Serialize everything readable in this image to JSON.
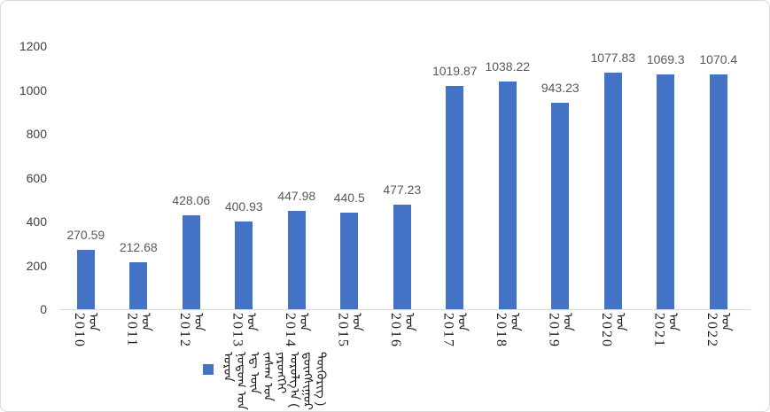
{
  "frame": {
    "background": "#ffffff",
    "border_color": "#d9d9d9"
  },
  "chart_data": {
    "type": "bar",
    "title": "",
    "categories": [
      "2010",
      "2011",
      "2012",
      "2013",
      "2014",
      "2015",
      "2016",
      "2017",
      "2018",
      "2019",
      "2020",
      "2021",
      "2022"
    ],
    "category_suffix": "ᠣᠨ",
    "category_suffix_note": "Mongolian vertical script suffix after each year (best-effort transcription)",
    "values": [
      270.59,
      212.68,
      428.06,
      400.93,
      447.98,
      440.5,
      477.23,
      1019.87,
      1038.22,
      943.23,
      1077.83,
      1069.3,
      1070.4
    ],
    "data_labels": [
      "270.59",
      "212.68",
      "428.06",
      "400.93",
      "447.98",
      "440.5",
      "477.23",
      "1019.87",
      "1038.22",
      "943.23",
      "1077.83",
      "1069.3",
      "1070.4"
    ],
    "xlabel": "",
    "ylabel": "",
    "ylim": [
      0,
      1200
    ],
    "y_ticks": [
      0,
      200,
      400,
      600,
      800,
      1000,
      1200
    ],
    "y_tick_labels": [
      "0",
      "200",
      "400",
      "600",
      "800",
      "1000",
      "1200"
    ],
    "grid": false,
    "bar_color": "#4472c4",
    "legend": {
      "position": "bottom",
      "marker_color": "#4472c4",
      "label": "ᠣᠷᠣᠨ ᠨᠤᠲᠤᠭ ᠤᠨ ᠡᠳ᠋ ᠦᠨ ᠵᠠᠰᠠᠭ ᠤᠨ ᠶᠡᠷᠦᠩᠬᠡᠢ ᠣᠷᠣᠯᠭ᠎ᠠ ( ᠳ᠋ᠦᠩᠰᠢᠭᠤᠷ ᠲᠥᠭᠥᠷᠢᠭ )",
      "label_note": "Mongolian vertical script legend text (best-effort transcription)"
    }
  },
  "styles": {
    "bar_color": "#4472c4",
    "data_label_color": "#595959",
    "y_tick_color": "#404040",
    "x_label_color": "#1a1a1a",
    "axis_line_color": "#d9d9d9"
  }
}
